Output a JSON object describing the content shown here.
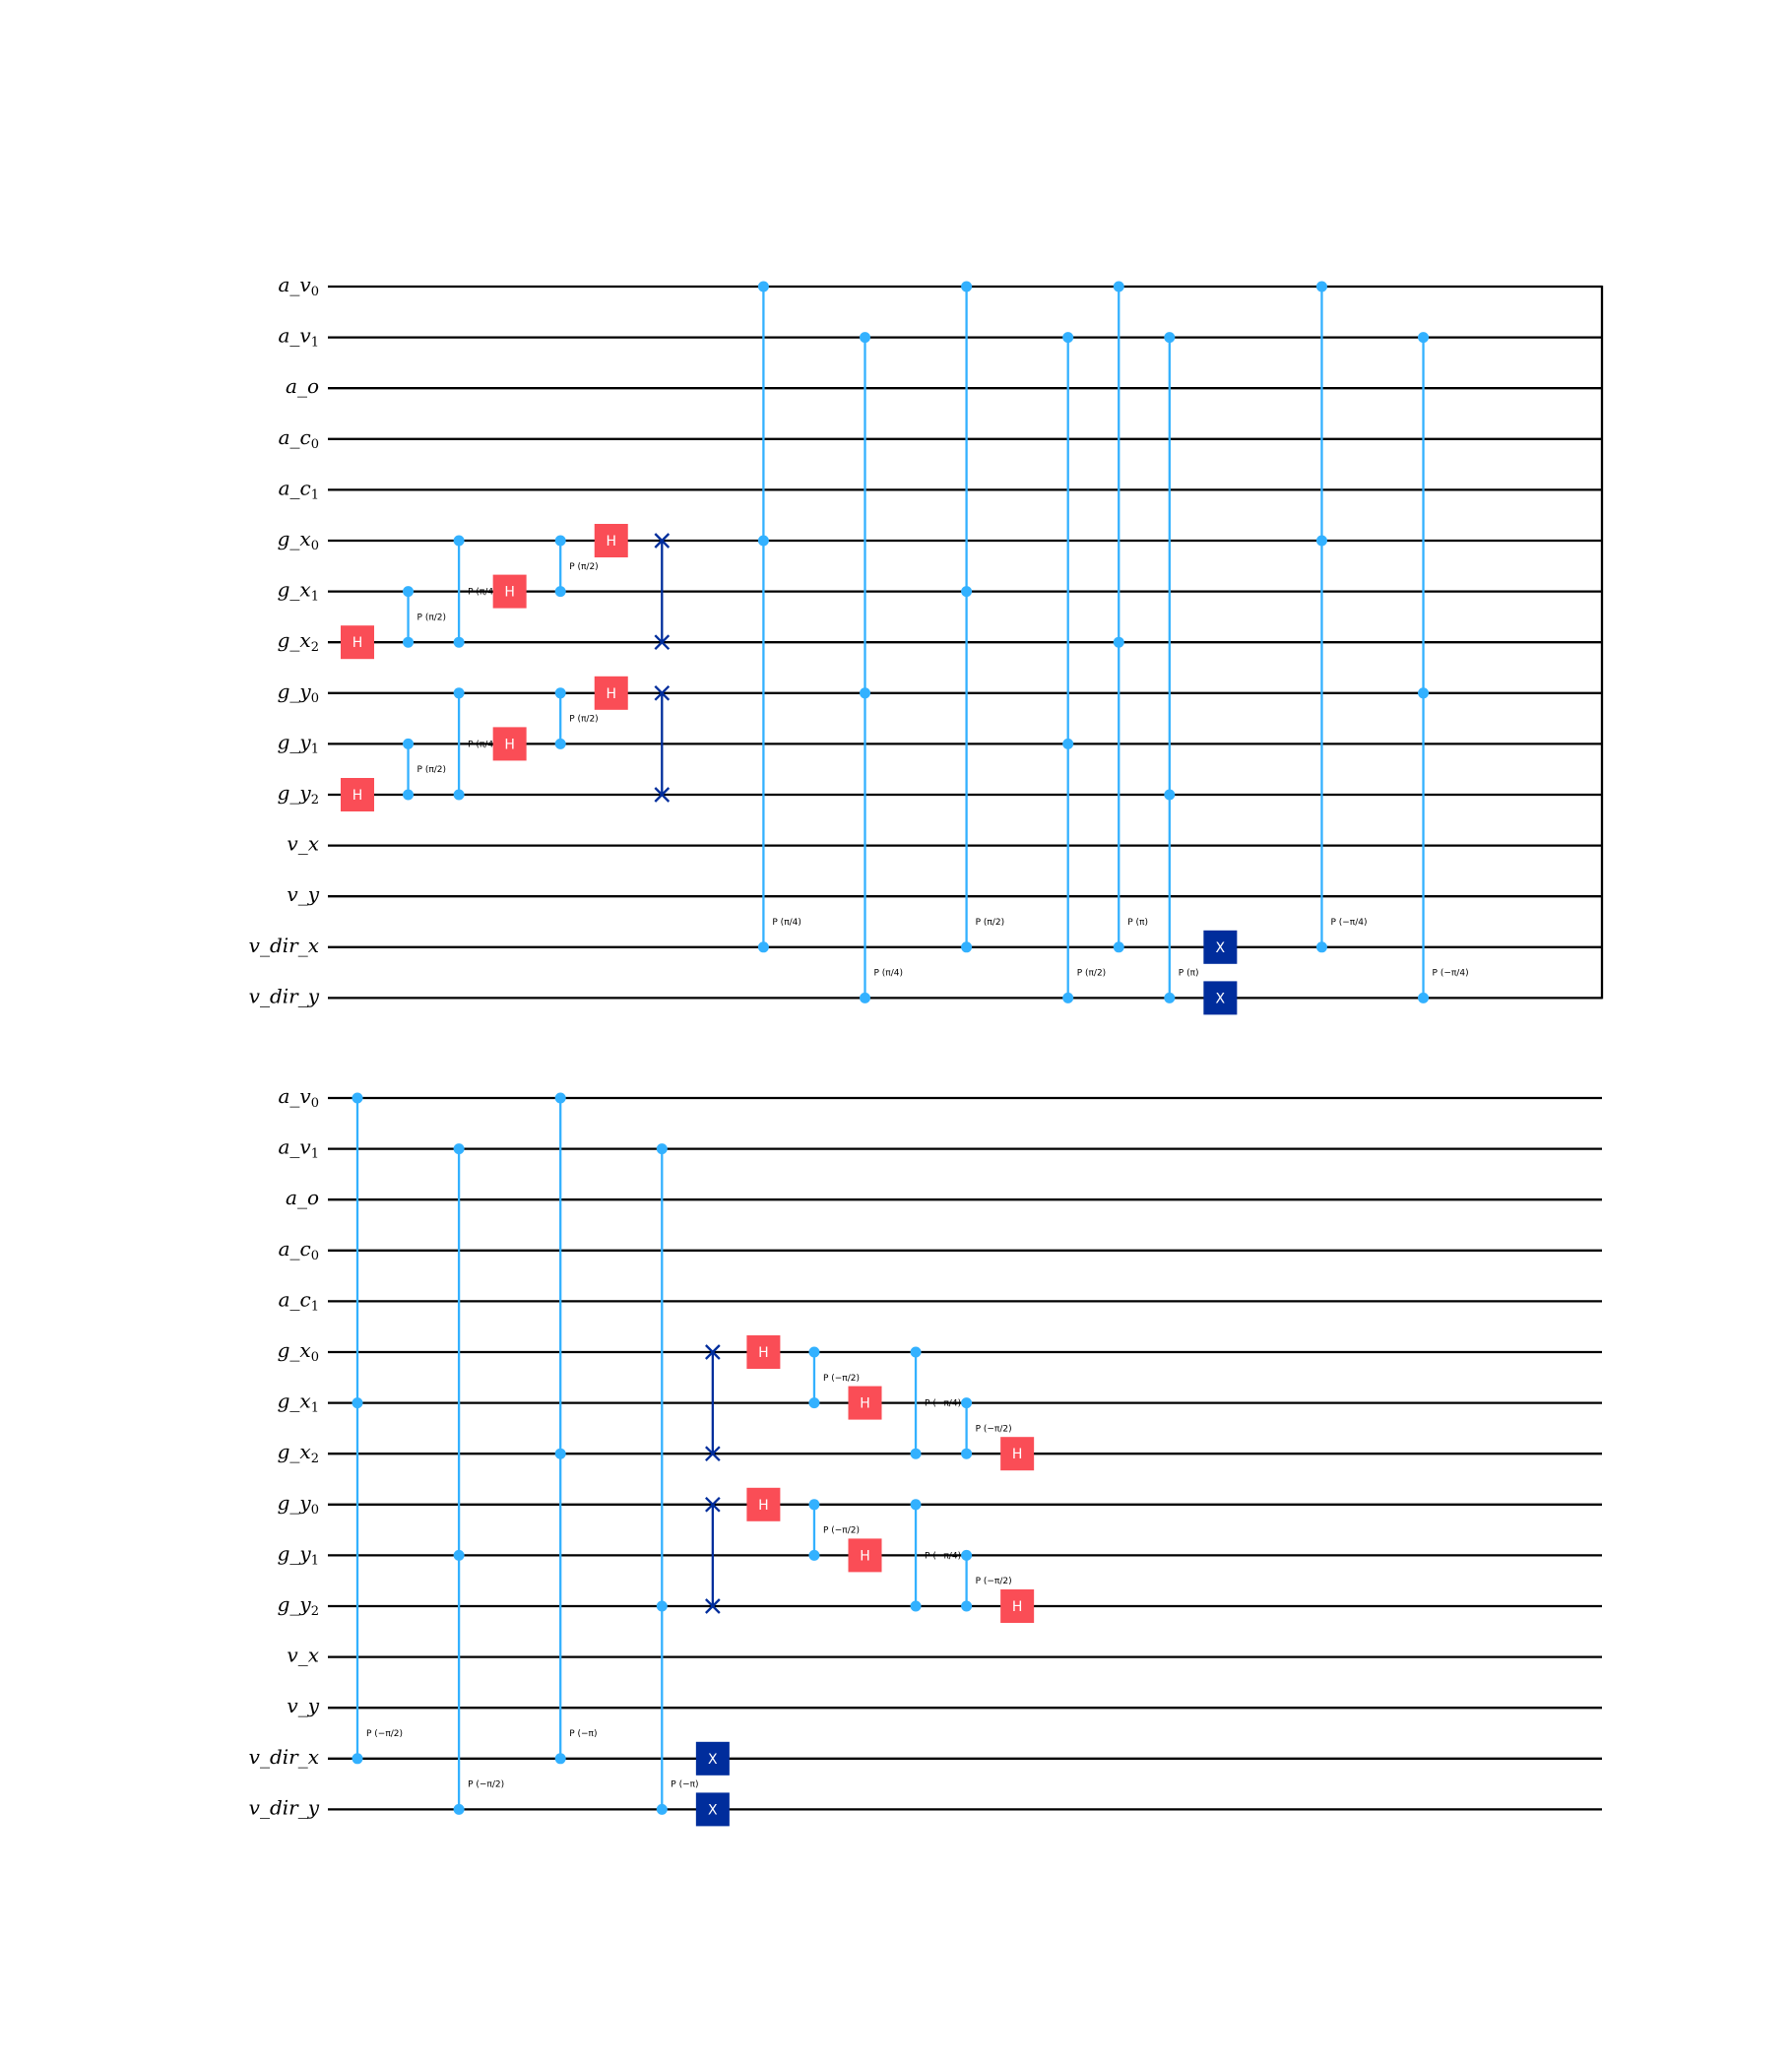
{
  "qubits": [
    {
      "base": "a_v",
      "sub": "0"
    },
    {
      "base": "a_v",
      "sub": "1"
    },
    {
      "base": "a_o",
      "sub": ""
    },
    {
      "base": "a_c",
      "sub": "0"
    },
    {
      "base": "a_c",
      "sub": "1"
    },
    {
      "base": "g_x",
      "sub": "0"
    },
    {
      "base": "g_x",
      "sub": "1"
    },
    {
      "base": "g_x",
      "sub": "2"
    },
    {
      "base": "g_y",
      "sub": "0"
    },
    {
      "base": "g_y",
      "sub": "1"
    },
    {
      "base": "g_y",
      "sub": "2"
    },
    {
      "base": "v_x",
      "sub": ""
    },
    {
      "base": "v_y",
      "sub": ""
    },
    {
      "base": "v_dir_x",
      "sub": ""
    },
    {
      "base": "v_dir_y",
      "sub": ""
    }
  ],
  "colors": {
    "h_gate": "#fa4d56",
    "x_gate": "#002d9c",
    "cphase": "#33b1ff",
    "swap": "#002d9c",
    "wire": "#000000"
  },
  "panels": [
    {
      "name": "panel-1",
      "right_edge_bar": true,
      "columns": [
        {
          "gates": [
            {
              "type": "H",
              "label": "H",
              "q": 7
            },
            {
              "type": "H",
              "label": "H",
              "q": 10
            }
          ]
        },
        {
          "gates": [
            {
              "type": "CP",
              "q1": 6,
              "q2": 7,
              "label": "P (π/2)"
            },
            {
              "type": "CP",
              "q1": 9,
              "q2": 10,
              "label": "P (π/2)"
            }
          ]
        },
        {
          "gates": [
            {
              "type": "CP",
              "q1": 5,
              "q2": 7,
              "label": "P (π/4)"
            },
            {
              "type": "CP",
              "q1": 8,
              "q2": 10,
              "label": "P (π/4)"
            }
          ]
        },
        {
          "gates": [
            {
              "type": "H",
              "label": "H",
              "q": 6
            },
            {
              "type": "H",
              "label": "H",
              "q": 9
            }
          ]
        },
        {
          "gates": [
            {
              "type": "CP",
              "q1": 5,
              "q2": 6,
              "label": "P (π/2)"
            },
            {
              "type": "CP",
              "q1": 8,
              "q2": 9,
              "label": "P (π/2)"
            }
          ]
        },
        {
          "gates": [
            {
              "type": "H",
              "label": "H",
              "q": 5
            },
            {
              "type": "H",
              "label": "H",
              "q": 8
            }
          ]
        },
        {
          "gates": [
            {
              "type": "SWAP",
              "q1": 5,
              "q2": 7
            },
            {
              "type": "SWAP",
              "q1": 8,
              "q2": 10
            }
          ]
        },
        {
          "gates": []
        },
        {
          "gates": [
            {
              "type": "MCP",
              "qs": [
                0,
                5,
                13
              ],
              "label": "P (π/4)"
            }
          ]
        },
        {
          "gates": []
        },
        {
          "gates": [
            {
              "type": "MCP",
              "qs": [
                1,
                8,
                14
              ],
              "label": "P (π/4)"
            }
          ]
        },
        {
          "gates": []
        },
        {
          "gates": [
            {
              "type": "MCP",
              "qs": [
                0,
                6,
                13
              ],
              "label": "P (π/2)"
            }
          ]
        },
        {
          "gates": []
        },
        {
          "gates": [
            {
              "type": "MCP",
              "qs": [
                1,
                9,
                14
              ],
              "label": "P (π/2)"
            }
          ]
        },
        {
          "gates": [
            {
              "type": "MCP",
              "qs": [
                0,
                7,
                13
              ],
              "label": "P (π)"
            }
          ]
        },
        {
          "gates": [
            {
              "type": "MCP",
              "qs": [
                1,
                10,
                14
              ],
              "label": "P (π)"
            }
          ]
        },
        {
          "gates": [
            {
              "type": "X",
              "label": "X",
              "q": 13
            },
            {
              "type": "X",
              "label": "X",
              "q": 14
            }
          ]
        },
        {
          "gates": []
        },
        {
          "gates": [
            {
              "type": "MCP",
              "qs": [
                0,
                5,
                13
              ],
              "label": "P (−π/4)"
            }
          ]
        },
        {
          "gates": []
        },
        {
          "gates": [
            {
              "type": "MCP",
              "qs": [
                1,
                8,
                14
              ],
              "label": "P (−π/4)"
            }
          ]
        }
      ]
    },
    {
      "name": "panel-2",
      "right_edge_bar": false,
      "columns": [
        {
          "gates": [
            {
              "type": "MCP",
              "qs": [
                0,
                6,
                13
              ],
              "label": "P (−π/2)"
            }
          ]
        },
        {
          "gates": []
        },
        {
          "gates": [
            {
              "type": "MCP",
              "qs": [
                1,
                9,
                14
              ],
              "label": "P (−π/2)"
            }
          ]
        },
        {
          "gates": []
        },
        {
          "gates": [
            {
              "type": "MCP",
              "qs": [
                0,
                7,
                13
              ],
              "label": "P (−π)"
            }
          ]
        },
        {
          "gates": []
        },
        {
          "gates": [
            {
              "type": "MCP",
              "qs": [
                1,
                10,
                14
              ],
              "label": "P (−π)"
            }
          ]
        },
        {
          "gates": [
            {
              "type": "SWAP",
              "q1": 5,
              "q2": 7
            },
            {
              "type": "SWAP",
              "q1": 8,
              "q2": 10
            },
            {
              "type": "X",
              "label": "X",
              "q": 13
            },
            {
              "type": "X",
              "label": "X",
              "q": 14
            }
          ]
        },
        {
          "gates": [
            {
              "type": "H",
              "label": "H",
              "q": 5
            },
            {
              "type": "H",
              "label": "H",
              "q": 8
            }
          ]
        },
        {
          "gates": [
            {
              "type": "CP",
              "q1": 5,
              "q2": 6,
              "label": "P (−π/2)"
            },
            {
              "type": "CP",
              "q1": 8,
              "q2": 9,
              "label": "P (−π/2)"
            }
          ]
        },
        {
          "gates": [
            {
              "type": "H",
              "label": "H",
              "q": 6
            },
            {
              "type": "H",
              "label": "H",
              "q": 9
            }
          ]
        },
        {
          "gates": [
            {
              "type": "CP",
              "q1": 5,
              "q2": 7,
              "label": "P (−π/4)"
            },
            {
              "type": "CP",
              "q1": 8,
              "q2": 10,
              "label": "P (−π/4)"
            }
          ]
        },
        {
          "gates": [
            {
              "type": "CP",
              "q1": 6,
              "q2": 7,
              "label": "P (−π/2)"
            },
            {
              "type": "CP",
              "q1": 9,
              "q2": 10,
              "label": "P (−π/2)"
            }
          ]
        },
        {
          "gates": [
            {
              "type": "H",
              "label": "H",
              "q": 7
            },
            {
              "type": "H",
              "label": "H",
              "q": 10
            }
          ]
        }
      ]
    }
  ]
}
